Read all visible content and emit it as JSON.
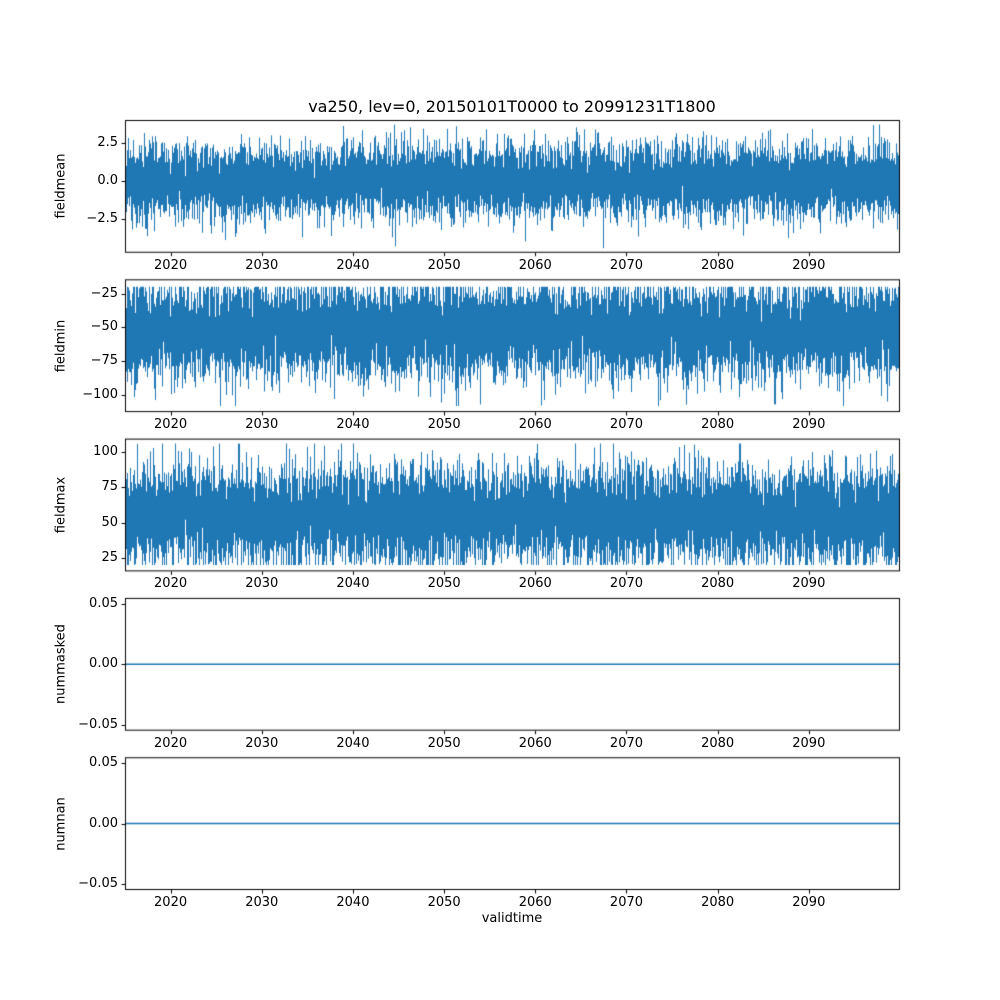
{
  "chart_data": {
    "type": "line",
    "title": "va250, lev=0, 20150101T0000 to 20991231T1800",
    "xlabel": "validtime",
    "line_color": "#1f77b4",
    "x_range": [
      2015,
      2100
    ],
    "x_ticks": [
      {
        "value": 2020,
        "label": "2020"
      },
      {
        "value": 2030,
        "label": "2030"
      },
      {
        "value": 2040,
        "label": "2040"
      },
      {
        "value": 2050,
        "label": "2050"
      },
      {
        "value": 2060,
        "label": "2060"
      },
      {
        "value": 2070,
        "label": "2070"
      },
      {
        "value": 2080,
        "label": "2080"
      },
      {
        "value": 2090,
        "label": "2090"
      }
    ],
    "subplots": [
      {
        "ylabel": "fieldmean",
        "ylim": [
          -4.7,
          4.0
        ],
        "yticks": [
          {
            "value": 2.5,
            "label": "2.5"
          },
          {
            "value": 0.0,
            "label": "0.0"
          },
          {
            "value": -2.5,
            "label": "−2.5"
          }
        ],
        "series_summary": {
          "kind": "noise",
          "mean": 0.0,
          "std": 1.15,
          "min": -4.4,
          "max": 3.7
        }
      },
      {
        "ylabel": "fieldmin",
        "ylim": [
          -112.5,
          -14.5
        ],
        "yticks": [
          {
            "value": -25,
            "label": "−25"
          },
          {
            "value": -50,
            "label": "−50"
          },
          {
            "value": -75,
            "label": "−75"
          },
          {
            "value": -100,
            "label": "−100"
          }
        ],
        "series_summary": {
          "kind": "noise",
          "mean": -52,
          "std": 17,
          "min": -108,
          "max": -20
        }
      },
      {
        "ylabel": "fieldmax",
        "ylim": [
          15.5,
          109.5
        ],
        "yticks": [
          {
            "value": 100,
            "label": "100"
          },
          {
            "value": 75,
            "label": "75"
          },
          {
            "value": 50,
            "label": "50"
          },
          {
            "value": 25,
            "label": "25"
          }
        ],
        "series_summary": {
          "kind": "noise",
          "mean": 55,
          "std": 17,
          "min": 20,
          "max": 106
        }
      },
      {
        "ylabel": "nummasked",
        "ylim": [
          -0.055,
          0.055
        ],
        "yticks": [
          {
            "value": 0.05,
            "label": "0.05"
          },
          {
            "value": 0.0,
            "label": "0.00"
          },
          {
            "value": -0.05,
            "label": "−0.05"
          }
        ],
        "series_summary": {
          "kind": "constant",
          "value": 0.0
        }
      },
      {
        "ylabel": "numnan",
        "ylim": [
          -0.055,
          0.055
        ],
        "yticks": [
          {
            "value": 0.05,
            "label": "0.05"
          },
          {
            "value": 0.0,
            "label": "0.00"
          },
          {
            "value": -0.05,
            "label": "−0.05"
          }
        ],
        "series_summary": {
          "kind": "constant",
          "value": 0.0
        }
      }
    ]
  }
}
